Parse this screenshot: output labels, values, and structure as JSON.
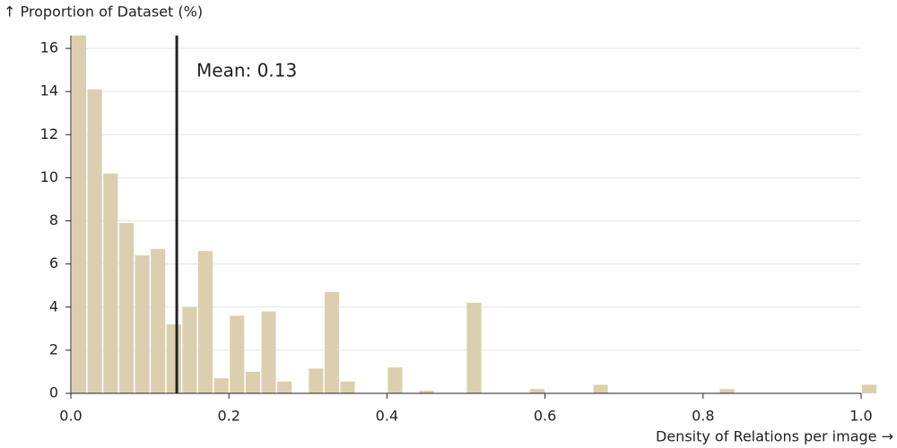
{
  "chart_data": {
    "type": "histogram",
    "y_label": "↑ Proportion of Dataset (%)",
    "x_label": "Density of Relations per image →",
    "bins": [
      0,
      0.02,
      0.04,
      0.06,
      0.08,
      0.1,
      0.12,
      0.14,
      0.16,
      0.18,
      0.2,
      0.22,
      0.24,
      0.26,
      0.28,
      0.3,
      0.32,
      0.34,
      0.36,
      0.38,
      0.4,
      0.42,
      0.44,
      0.46,
      0.48,
      0.5,
      0.52,
      0.54,
      0.56,
      0.58,
      0.6,
      0.62,
      0.64,
      0.66,
      0.68,
      0.7,
      0.72,
      0.74,
      0.76,
      0.78,
      0.8,
      0.82,
      0.84,
      0.86,
      0.88,
      0.9,
      0.92,
      0.94,
      0.96,
      0.98,
      1.0,
      1.02
    ],
    "counts": [
      16.6,
      14.1,
      10.2,
      7.9,
      6.4,
      6.7,
      3.2,
      4.0,
      6.6,
      0.7,
      3.6,
      1.0,
      3.8,
      0.55,
      0,
      1.15,
      4.7,
      0.55,
      0,
      0,
      1.2,
      0,
      0.12,
      0,
      0,
      4.2,
      0,
      0,
      0,
      0.2,
      0,
      0,
      0,
      0.4,
      0,
      0,
      0,
      0,
      0,
      0,
      0,
      0.2,
      0,
      0,
      0,
      0,
      0,
      0,
      0,
      0,
      0.4
    ],
    "color": "#dbcfb0",
    "mean": {
      "value": 0.134,
      "label": "Mean: 0.13"
    },
    "xlim": [
      0,
      1.02
    ],
    "ylim": [
      0,
      16.6
    ],
    "xticks": [
      {
        "value": 0,
        "label": "0.0"
      },
      0.2,
      0.4,
      0.6,
      0.8,
      {
        "value": 1,
        "label": "1.0"
      }
    ],
    "yticks": [
      0,
      2,
      4,
      6,
      8,
      10,
      12,
      14,
      16
    ],
    "grid": true
  }
}
